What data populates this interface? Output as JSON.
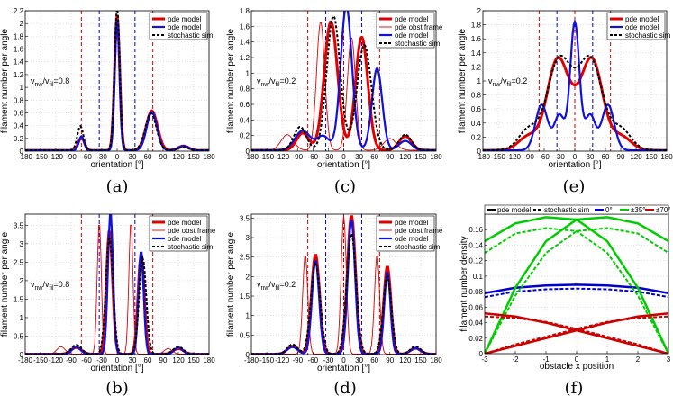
{
  "chart_data": [
    {
      "panel": "a",
      "type": "line",
      "caption": "(a)",
      "xlabel": "orientation [°]",
      "ylabel": "filament number per angle",
      "xlim": [
        -180,
        180
      ],
      "ylim": [
        0,
        2.2
      ],
      "xticks": [
        -180,
        -150,
        -120,
        -90,
        -60,
        -30,
        0,
        30,
        60,
        90,
        120,
        150,
        180
      ],
      "yticks": [
        0,
        0.2,
        0.4,
        0.6,
        0.8,
        1,
        1.2,
        1.4,
        1.6,
        1.8,
        2,
        2.2
      ],
      "annotation": "v_nw/v_fil=0.8",
      "legend": [
        "pde model",
        "ode model",
        "stochastic sim"
      ],
      "vlines": [
        {
          "x": -70,
          "color": "#cc0000"
        },
        {
          "x": 70,
          "color": "#cc0000"
        },
        {
          "x": -35,
          "color": "#0000cc"
        },
        {
          "x": 35,
          "color": "#0000cc"
        }
      ],
      "series": [
        {
          "name": "pde model",
          "style": "red",
          "peaks": [
            [
              -70,
              0.2,
              6
            ],
            [
              0,
              2.12,
              5
            ],
            [
              68,
              0.62,
              11
            ],
            [
              130,
              0.07,
              10
            ]
          ]
        },
        {
          "name": "ode model",
          "style": "blue",
          "peaks": [
            [
              -70,
              0.22,
              5
            ],
            [
              0,
              2.05,
              4.5
            ],
            [
              68,
              0.6,
              10
            ],
            [
              130,
              0.07,
              10
            ]
          ]
        },
        {
          "name": "stochastic sim",
          "style": "dash",
          "peaks": [
            [
              -72,
              0.38,
              6
            ],
            [
              0,
              2.25,
              5
            ],
            [
              66,
              0.58,
              11
            ],
            [
              130,
              0.05,
              10
            ]
          ]
        }
      ]
    },
    {
      "panel": "c",
      "type": "line",
      "caption": "(c)",
      "xlabel": "orientation [°]",
      "ylabel": "filament number per angle",
      "xlim": [
        -180,
        180
      ],
      "ylim": [
        0,
        1.8
      ],
      "xticks": [
        -180,
        -150,
        -120,
        -90,
        -60,
        -30,
        0,
        30,
        60,
        90,
        120,
        150,
        180
      ],
      "yticks": [
        0,
        0.2,
        0.4,
        0.6,
        0.8,
        1,
        1.2,
        1.4,
        1.6,
        1.8
      ],
      "annotation": "v_nw/v_fil=0.2",
      "legend": [
        "pde model",
        "pde obst frame",
        "ode model",
        "stochastic sim"
      ],
      "vlines": [
        {
          "x": -70,
          "color": "#cc0000"
        },
        {
          "x": 0,
          "color": "#cc0000"
        },
        {
          "x": 70,
          "color": "#cc0000"
        },
        {
          "x": -35,
          "color": "#0000cc"
        },
        {
          "x": 35,
          "color": "#0000cc"
        }
      ],
      "series": [
        {
          "name": "pde model",
          "style": "red",
          "peaks": [
            [
              -80,
              0.22,
              12
            ],
            [
              -25,
              1.65,
              13
            ],
            [
              35,
              1.45,
              12
            ],
            [
              120,
              0.18,
              12
            ]
          ]
        },
        {
          "name": "pde obst frame",
          "style": "thinred",
          "peaks": [
            [
              -110,
              0.2,
              12
            ],
            [
              -45,
              1.65,
              8
            ],
            [
              15,
              1.45,
              8
            ],
            [
              90,
              0.15,
              12
            ]
          ]
        },
        {
          "name": "ode model",
          "style": "blue",
          "peaks": [
            [
              -80,
              0.25,
              15
            ],
            [
              -40,
              0.18,
              12
            ],
            [
              5,
              1.85,
              11
            ],
            [
              65,
              1.05,
              10
            ],
            [
              120,
              0.12,
              12
            ]
          ]
        },
        {
          "name": "stochastic sim",
          "style": "dash",
          "peaks": [
            [
              -85,
              0.3,
              12
            ],
            [
              -20,
              1.72,
              13
            ],
            [
              40,
              1.35,
              14
            ],
            [
              120,
              0.2,
              12
            ]
          ]
        }
      ]
    },
    {
      "panel": "e",
      "type": "line",
      "caption": "(e)",
      "xlabel": "orientation [°]",
      "ylabel": "filament number per angle",
      "xlim": [
        -180,
        180
      ],
      "ylim": [
        0,
        2
      ],
      "xticks": [
        -180,
        -150,
        -120,
        -90,
        -60,
        -30,
        0,
        30,
        60,
        90,
        120,
        150,
        180
      ],
      "yticks": [
        0,
        0.2,
        0.4,
        0.6,
        0.8,
        1,
        1.2,
        1.4,
        1.6,
        1.8,
        2
      ],
      "annotation": "v_nw/v_fil=0.2",
      "legend": [
        "pde model",
        "ode model",
        "stochastic sim"
      ],
      "vlines": [
        {
          "x": -70,
          "color": "#cc0000"
        },
        {
          "x": 0,
          "color": "#cc0000"
        },
        {
          "x": 70,
          "color": "#cc0000"
        },
        {
          "x": -35,
          "color": "#0000cc"
        },
        {
          "x": 35,
          "color": "#0000cc"
        }
      ],
      "series": [
        {
          "name": "pde model",
          "style": "red",
          "peaks": [
            [
              -35,
              1.22,
              20
            ],
            [
              35,
              1.22,
              20
            ],
            [
              0,
              0.4,
              20
            ],
            [
              -90,
              0.2,
              20
            ],
            [
              90,
              0.2,
              20
            ]
          ]
        },
        {
          "name": "ode model",
          "style": "blue",
          "peaks": [
            [
              0,
              1.82,
              9
            ],
            [
              -65,
              0.65,
              12
            ],
            [
              65,
              0.65,
              12
            ],
            [
              -30,
              0.5,
              10
            ],
            [
              30,
              0.5,
              10
            ]
          ]
        },
        {
          "name": "stochastic sim",
          "style": "dash",
          "peaks": [
            [
              -33,
              1.2,
              22
            ],
            [
              33,
              1.2,
              22
            ],
            [
              0,
              0.4,
              20
            ],
            [
              -90,
              0.3,
              20
            ],
            [
              90,
              0.3,
              20
            ]
          ]
        }
      ]
    },
    {
      "panel": "b",
      "type": "line",
      "caption": "(b)",
      "xlabel": "orientation [°]",
      "ylabel": "filament number per angle",
      "xlim": [
        -180,
        180
      ],
      "ylim": [
        0,
        3.8
      ],
      "xticks": [
        -180,
        -150,
        -120,
        -90,
        -60,
        -30,
        0,
        30,
        60,
        90,
        120,
        150,
        180
      ],
      "yticks": [
        0,
        0.5,
        1,
        1.5,
        2,
        2.5,
        3,
        3.5
      ],
      "annotation": "v_nw/v_fil=0.8",
      "legend": [
        "pde model",
        "pde obst frame",
        "ode model",
        "stochastic sim"
      ],
      "vlines": [
        {
          "x": -70,
          "color": "#cc0000"
        },
        {
          "x": 70,
          "color": "#cc0000"
        },
        {
          "x": -35,
          "color": "#0000cc"
        },
        {
          "x": 35,
          "color": "#0000cc"
        }
      ],
      "series": [
        {
          "name": "pde model",
          "style": "red",
          "peaks": [
            [
              -80,
              0.18,
              10
            ],
            [
              -15,
              3.35,
              6
            ],
            [
              47,
              2.7,
              6
            ],
            [
              120,
              0.15,
              10
            ]
          ]
        },
        {
          "name": "pde obst frame",
          "style": "thinred",
          "peaks": [
            [
              -110,
              0.2,
              8
            ],
            [
              -35,
              3.6,
              4
            ],
            [
              27,
              3.6,
              4
            ],
            [
              100,
              0.15,
              8
            ]
          ]
        },
        {
          "name": "ode model",
          "style": "blue",
          "peaks": [
            [
              -80,
              0.2,
              8
            ],
            [
              -13,
              3.85,
              5
            ],
            [
              47,
              2.8,
              5
            ],
            [
              120,
              0.18,
              8
            ]
          ]
        },
        {
          "name": "stochastic sim",
          "style": "dash",
          "peaks": [
            [
              -80,
              0.25,
              10
            ],
            [
              -15,
              3.15,
              7
            ],
            [
              50,
              2.6,
              7
            ],
            [
              120,
              0.2,
              10
            ]
          ]
        }
      ]
    },
    {
      "panel": "d",
      "type": "line",
      "caption": "(d)",
      "xlabel": "orientation [°]",
      "ylabel": "filament number per angle",
      "xlim": [
        -180,
        180
      ],
      "ylim": [
        0,
        3.6
      ],
      "xticks": [
        -180,
        -150,
        -120,
        -90,
        -60,
        -30,
        0,
        30,
        60,
        90,
        120,
        150,
        180
      ],
      "yticks": [
        0,
        0.5,
        1,
        1.5,
        2,
        2.5,
        3,
        3.5
      ],
      "annotation": "v_nw/v_fil=0.2",
      "legend": [
        "pde model",
        "pde obst frame",
        "ode model",
        "stochastic sim"
      ],
      "vlines": [
        {
          "x": -70,
          "color": "#cc0000"
        },
        {
          "x": 0,
          "color": "#cc0000"
        },
        {
          "x": 70,
          "color": "#cc0000"
        },
        {
          "x": -35,
          "color": "#0000cc"
        },
        {
          "x": 35,
          "color": "#0000cc"
        }
      ],
      "series": [
        {
          "name": "pde model",
          "style": "red",
          "peaks": [
            [
              -55,
              2.55,
              8
            ],
            [
              15,
              3.55,
              8
            ],
            [
              85,
              2.25,
              7
            ],
            [
              -100,
              0.2,
              10
            ],
            [
              140,
              0.15,
              10
            ]
          ]
        },
        {
          "name": "pde obst frame",
          "style": "thinred",
          "peaks": [
            [
              -75,
              2.55,
              5
            ],
            [
              0,
              3.55,
              5
            ],
            [
              65,
              2.55,
              5
            ]
          ]
        },
        {
          "name": "ode model",
          "style": "blue",
          "peaks": [
            [
              -55,
              2.4,
              7
            ],
            [
              15,
              3.45,
              7
            ],
            [
              85,
              2.1,
              6
            ],
            [
              -100,
              0.18,
              10
            ],
            [
              140,
              0.15,
              10
            ]
          ]
        },
        {
          "name": "stochastic sim",
          "style": "dash",
          "peaks": [
            [
              -55,
              2.35,
              9
            ],
            [
              15,
              3.1,
              9
            ],
            [
              85,
              2.0,
              8
            ],
            [
              -100,
              0.25,
              10
            ],
            [
              140,
              0.2,
              10
            ]
          ]
        }
      ]
    },
    {
      "panel": "f",
      "type": "line",
      "caption": "(f)",
      "xlabel": "obstacle x position",
      "ylabel": "filament number density",
      "xlim": [
        -3,
        3
      ],
      "ylim": [
        0,
        0.18
      ],
      "xticks": [
        -3,
        -2,
        -1,
        0,
        1,
        2,
        3
      ],
      "yticks": [
        0,
        0.02,
        0.04,
        0.06,
        0.08,
        0.1,
        0.12,
        0.14,
        0.16
      ],
      "legend": [
        "pde model",
        "stochastic sim",
        "0°",
        "±35°",
        "±70°"
      ],
      "series": [
        {
          "name": "0° pde",
          "color": "#0000cc",
          "dash": false,
          "values": [
            0.078,
            0.085,
            0.088,
            0.089,
            0.088,
            0.085,
            0.078
          ]
        },
        {
          "name": "0° sim",
          "color": "#0000cc",
          "dash": true,
          "values": [
            0.073,
            0.08,
            0.083,
            0.084,
            0.083,
            0.08,
            0.073
          ]
        },
        {
          "name": "+35° pde",
          "color": "#00cc00",
          "dash": false,
          "values": [
            0.0,
            0.085,
            0.145,
            0.173,
            0.176,
            0.168,
            0.145
          ]
        },
        {
          "name": "-35° pde",
          "color": "#00cc00",
          "dash": false,
          "values": [
            0.145,
            0.168,
            0.176,
            0.173,
            0.145,
            0.085,
            0.0
          ]
        },
        {
          "name": "+35° sim",
          "color": "#00cc00",
          "dash": true,
          "values": [
            0.0,
            0.075,
            0.13,
            0.158,
            0.162,
            0.155,
            0.13
          ]
        },
        {
          "name": "-35° sim",
          "color": "#00cc00",
          "dash": true,
          "values": [
            0.13,
            0.155,
            0.162,
            0.158,
            0.13,
            0.075,
            0.0
          ]
        },
        {
          "name": "+70° pde",
          "color": "#cc0000",
          "dash": false,
          "values": [
            0.0,
            0.01,
            0.02,
            0.03,
            0.04,
            0.048,
            0.052
          ]
        },
        {
          "name": "-70° pde",
          "color": "#cc0000",
          "dash": false,
          "values": [
            0.052,
            0.048,
            0.04,
            0.03,
            0.02,
            0.01,
            0.0
          ]
        },
        {
          "name": "+70° sim",
          "color": "#cc0000",
          "dash": true,
          "values": [
            0.0,
            0.012,
            0.022,
            0.032,
            0.041,
            0.046,
            0.048
          ]
        },
        {
          "name": "-70° sim",
          "color": "#cc0000",
          "dash": true,
          "values": [
            0.048,
            0.046,
            0.041,
            0.032,
            0.022,
            0.012,
            0.0
          ]
        }
      ]
    }
  ]
}
